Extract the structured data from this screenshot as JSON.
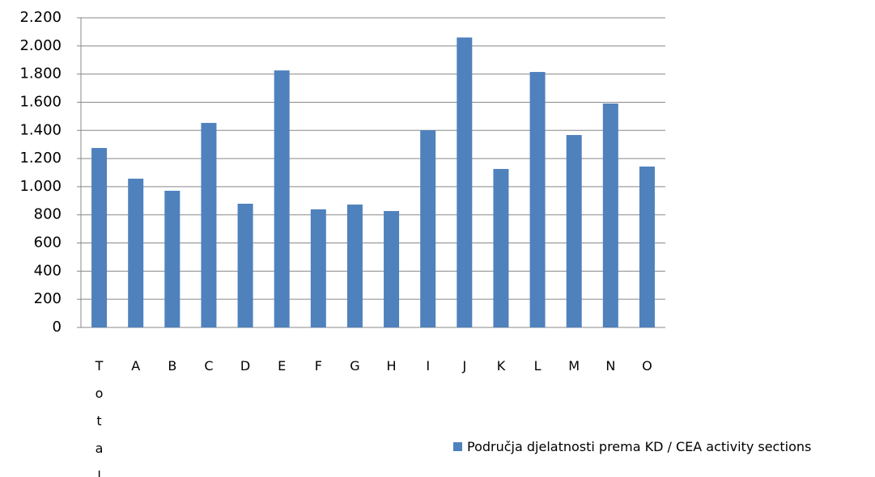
{
  "chart_data": {
    "type": "bar",
    "categories": [
      "Total",
      "A",
      "B",
      "C",
      "D",
      "E",
      "F",
      "G",
      "H",
      "I",
      "J",
      "K",
      "L",
      "M",
      "N",
      "O"
    ],
    "series": [
      {
        "name": "Područja djelatnosti prema KD / CEA activity sections",
        "color": "#4f81bd",
        "values": [
          1275,
          1057,
          971,
          1453,
          879,
          1826,
          839,
          873,
          827,
          1401,
          2060,
          1126,
          1815,
          1367,
          1591,
          1143
        ]
      }
    ],
    "ylim": [
      0,
      2200
    ],
    "yticks": [
      0,
      200,
      400,
      600,
      800,
      {
        "value": 1000,
        "label": "1.000"
      },
      {
        "value": 1200,
        "label": "1.200"
      },
      {
        "value": 1400,
        "label": "1.400"
      },
      {
        "value": 1600,
        "label": "1.600"
      },
      {
        "value": 1800,
        "label": "1.800"
      },
      {
        "value": 2000,
        "label": "2.000"
      },
      {
        "value": 2200,
        "label": "2.200"
      }
    ],
    "grid": true,
    "legend": "right"
  }
}
